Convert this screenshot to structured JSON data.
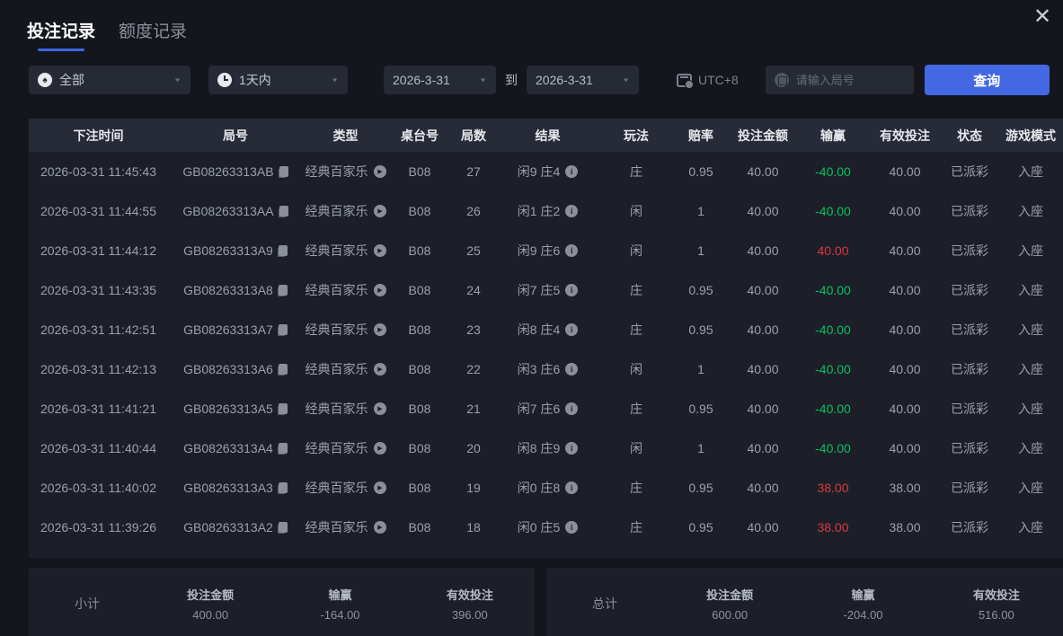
{
  "tabs": [
    {
      "label": "投注记录",
      "active": true
    },
    {
      "label": "额度记录",
      "active": false
    }
  ],
  "filters": {
    "game_type": {
      "value": "全部",
      "icon": "spade-icon",
      "icon_glyph": "♠"
    },
    "time_range": {
      "value": "1天内",
      "icon": "clock-icon"
    },
    "date_from": "2026-3-31",
    "to_label": "到",
    "date_to": "2026-3-31",
    "timezone": "UTC+8",
    "round_input": {
      "value": "",
      "placeholder": "请输入局号"
    },
    "search_button": "查询"
  },
  "icons": {
    "close": "✕",
    "caret": "▼"
  },
  "table": {
    "columns": [
      "下注时间",
      "局号",
      "类型",
      "桌台号",
      "局数",
      "结果",
      "玩法",
      "赔率",
      "投注金额",
      "输赢",
      "有效投注",
      "状态",
      "游戏模式"
    ],
    "rows": [
      {
        "time": "2026-03-31 11:45:43",
        "game_no": "GB08263313AB",
        "type": "经典百家乐",
        "table_no": "B08",
        "round": "27",
        "result": "闲9 庄4",
        "play": "庄",
        "odds": "0.95",
        "bet": "40.00",
        "win_loss": "-40.00",
        "wl_class": "green",
        "valid_bet": "40.00",
        "status": "已派彩",
        "mode": "入座"
      },
      {
        "time": "2026-03-31 11:44:55",
        "game_no": "GB08263313AA",
        "type": "经典百家乐",
        "table_no": "B08",
        "round": "26",
        "result": "闲1 庄2",
        "play": "闲",
        "odds": "1",
        "bet": "40.00",
        "win_loss": "-40.00",
        "wl_class": "green",
        "valid_bet": "40.00",
        "status": "已派彩",
        "mode": "入座"
      },
      {
        "time": "2026-03-31 11:44:12",
        "game_no": "GB08263313A9",
        "type": "经典百家乐",
        "table_no": "B08",
        "round": "25",
        "result": "闲9 庄6",
        "play": "闲",
        "odds": "1",
        "bet": "40.00",
        "win_loss": "40.00",
        "wl_class": "red",
        "valid_bet": "40.00",
        "status": "已派彩",
        "mode": "入座"
      },
      {
        "time": "2026-03-31 11:43:35",
        "game_no": "GB08263313A8",
        "type": "经典百家乐",
        "table_no": "B08",
        "round": "24",
        "result": "闲7 庄5",
        "play": "庄",
        "odds": "0.95",
        "bet": "40.00",
        "win_loss": "-40.00",
        "wl_class": "green",
        "valid_bet": "40.00",
        "status": "已派彩",
        "mode": "入座"
      },
      {
        "time": "2026-03-31 11:42:51",
        "game_no": "GB08263313A7",
        "type": "经典百家乐",
        "table_no": "B08",
        "round": "23",
        "result": "闲8 庄4",
        "play": "庄",
        "odds": "0.95",
        "bet": "40.00",
        "win_loss": "-40.00",
        "wl_class": "green",
        "valid_bet": "40.00",
        "status": "已派彩",
        "mode": "入座"
      },
      {
        "time": "2026-03-31 11:42:13",
        "game_no": "GB08263313A6",
        "type": "经典百家乐",
        "table_no": "B08",
        "round": "22",
        "result": "闲3 庄6",
        "play": "闲",
        "odds": "1",
        "bet": "40.00",
        "win_loss": "-40.00",
        "wl_class": "green",
        "valid_bet": "40.00",
        "status": "已派彩",
        "mode": "入座"
      },
      {
        "time": "2026-03-31 11:41:21",
        "game_no": "GB08263313A5",
        "type": "经典百家乐",
        "table_no": "B08",
        "round": "21",
        "result": "闲7 庄6",
        "play": "庄",
        "odds": "0.95",
        "bet": "40.00",
        "win_loss": "-40.00",
        "wl_class": "green",
        "valid_bet": "40.00",
        "status": "已派彩",
        "mode": "入座"
      },
      {
        "time": "2026-03-31 11:40:44",
        "game_no": "GB08263313A4",
        "type": "经典百家乐",
        "table_no": "B08",
        "round": "20",
        "result": "闲8 庄9",
        "play": "闲",
        "odds": "1",
        "bet": "40.00",
        "win_loss": "-40.00",
        "wl_class": "green",
        "valid_bet": "40.00",
        "status": "已派彩",
        "mode": "入座"
      },
      {
        "time": "2026-03-31 11:40:02",
        "game_no": "GB08263313A3",
        "type": "经典百家乐",
        "table_no": "B08",
        "round": "19",
        "result": "闲0 庄8",
        "play": "庄",
        "odds": "0.95",
        "bet": "40.00",
        "win_loss": "38.00",
        "wl_class": "red",
        "valid_bet": "38.00",
        "status": "已派彩",
        "mode": "入座"
      },
      {
        "time": "2026-03-31 11:39:26",
        "game_no": "GB08263313A2",
        "type": "经典百家乐",
        "table_no": "B08",
        "round": "18",
        "result": "闲0 庄5",
        "play": "庄",
        "odds": "0.95",
        "bet": "40.00",
        "win_loss": "38.00",
        "wl_class": "red",
        "valid_bet": "38.00",
        "status": "已派彩",
        "mode": "入座"
      }
    ]
  },
  "summary": {
    "subtotal": {
      "label": "小计",
      "bet_label": "投注金额",
      "bet": "400.00",
      "win_loss_label": "输赢",
      "win_loss": "-164.00",
      "valid_label": "有效投注",
      "valid": "396.00"
    },
    "total": {
      "label": "总计",
      "bet_label": "投注金额",
      "bet": "600.00",
      "win_loss_label": "输赢",
      "win_loss": "-204.00",
      "valid_label": "有效投注",
      "valid": "516.00"
    }
  },
  "colors": {
    "accent": "#4468e4",
    "green": "#0ac05e",
    "red": "#dd3742"
  }
}
